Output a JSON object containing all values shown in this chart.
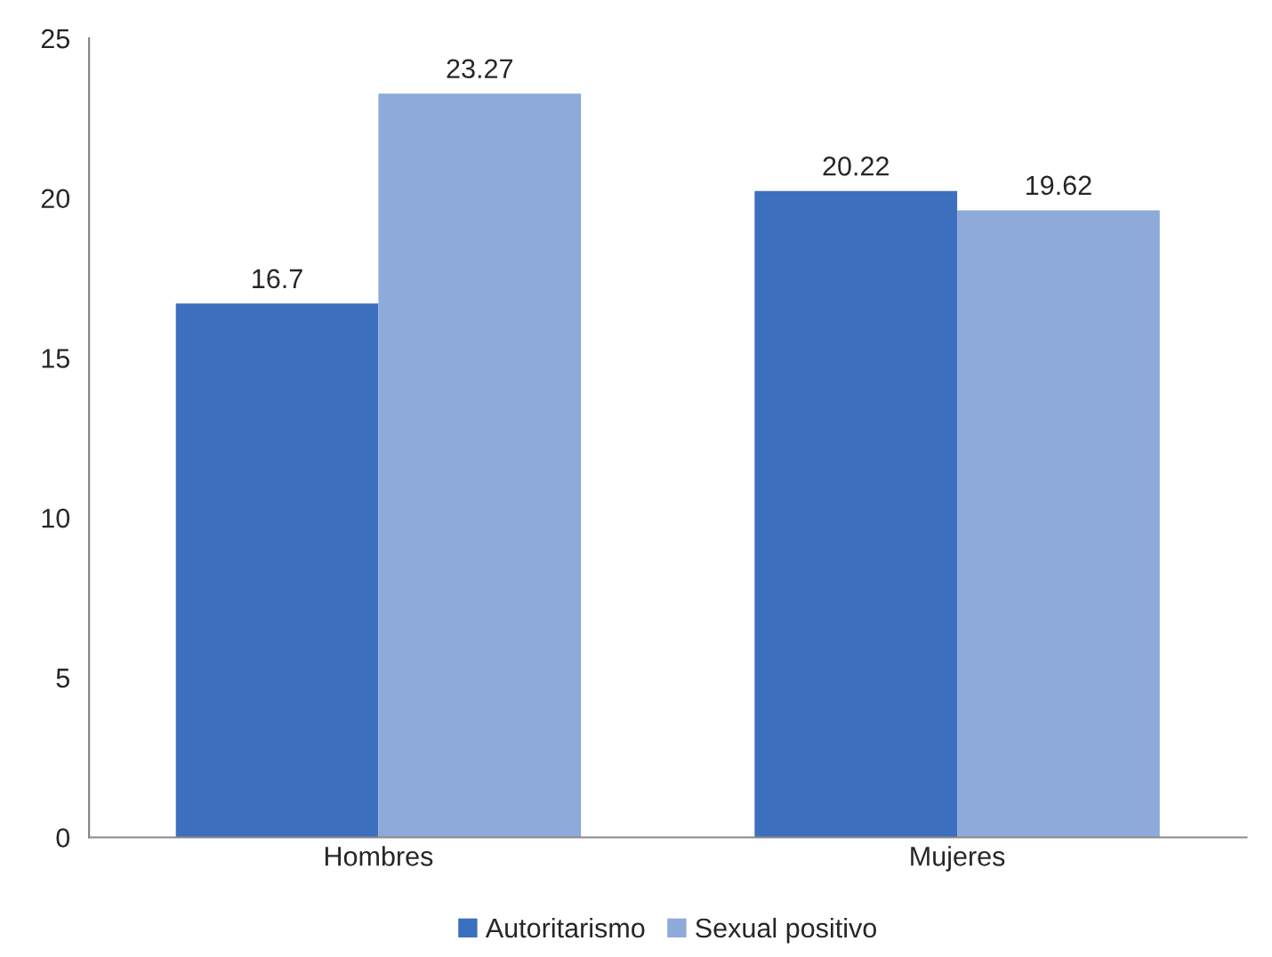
{
  "chart_data": {
    "type": "bar",
    "categories": [
      "Hombres",
      "Mujeres"
    ],
    "series": [
      {
        "name": "Autoritarismo",
        "color": "#3c6fbe",
        "values": [
          16.7,
          20.22
        ]
      },
      {
        "name": "Sexual positivo",
        "color": "#8eaadb",
        "values": [
          23.27,
          19.62
        ]
      }
    ],
    "ylim": [
      0,
      25
    ],
    "yticks": [
      0,
      5,
      10,
      15,
      20,
      25
    ],
    "data_labels": true,
    "legend": "bottom",
    "grid": false
  }
}
